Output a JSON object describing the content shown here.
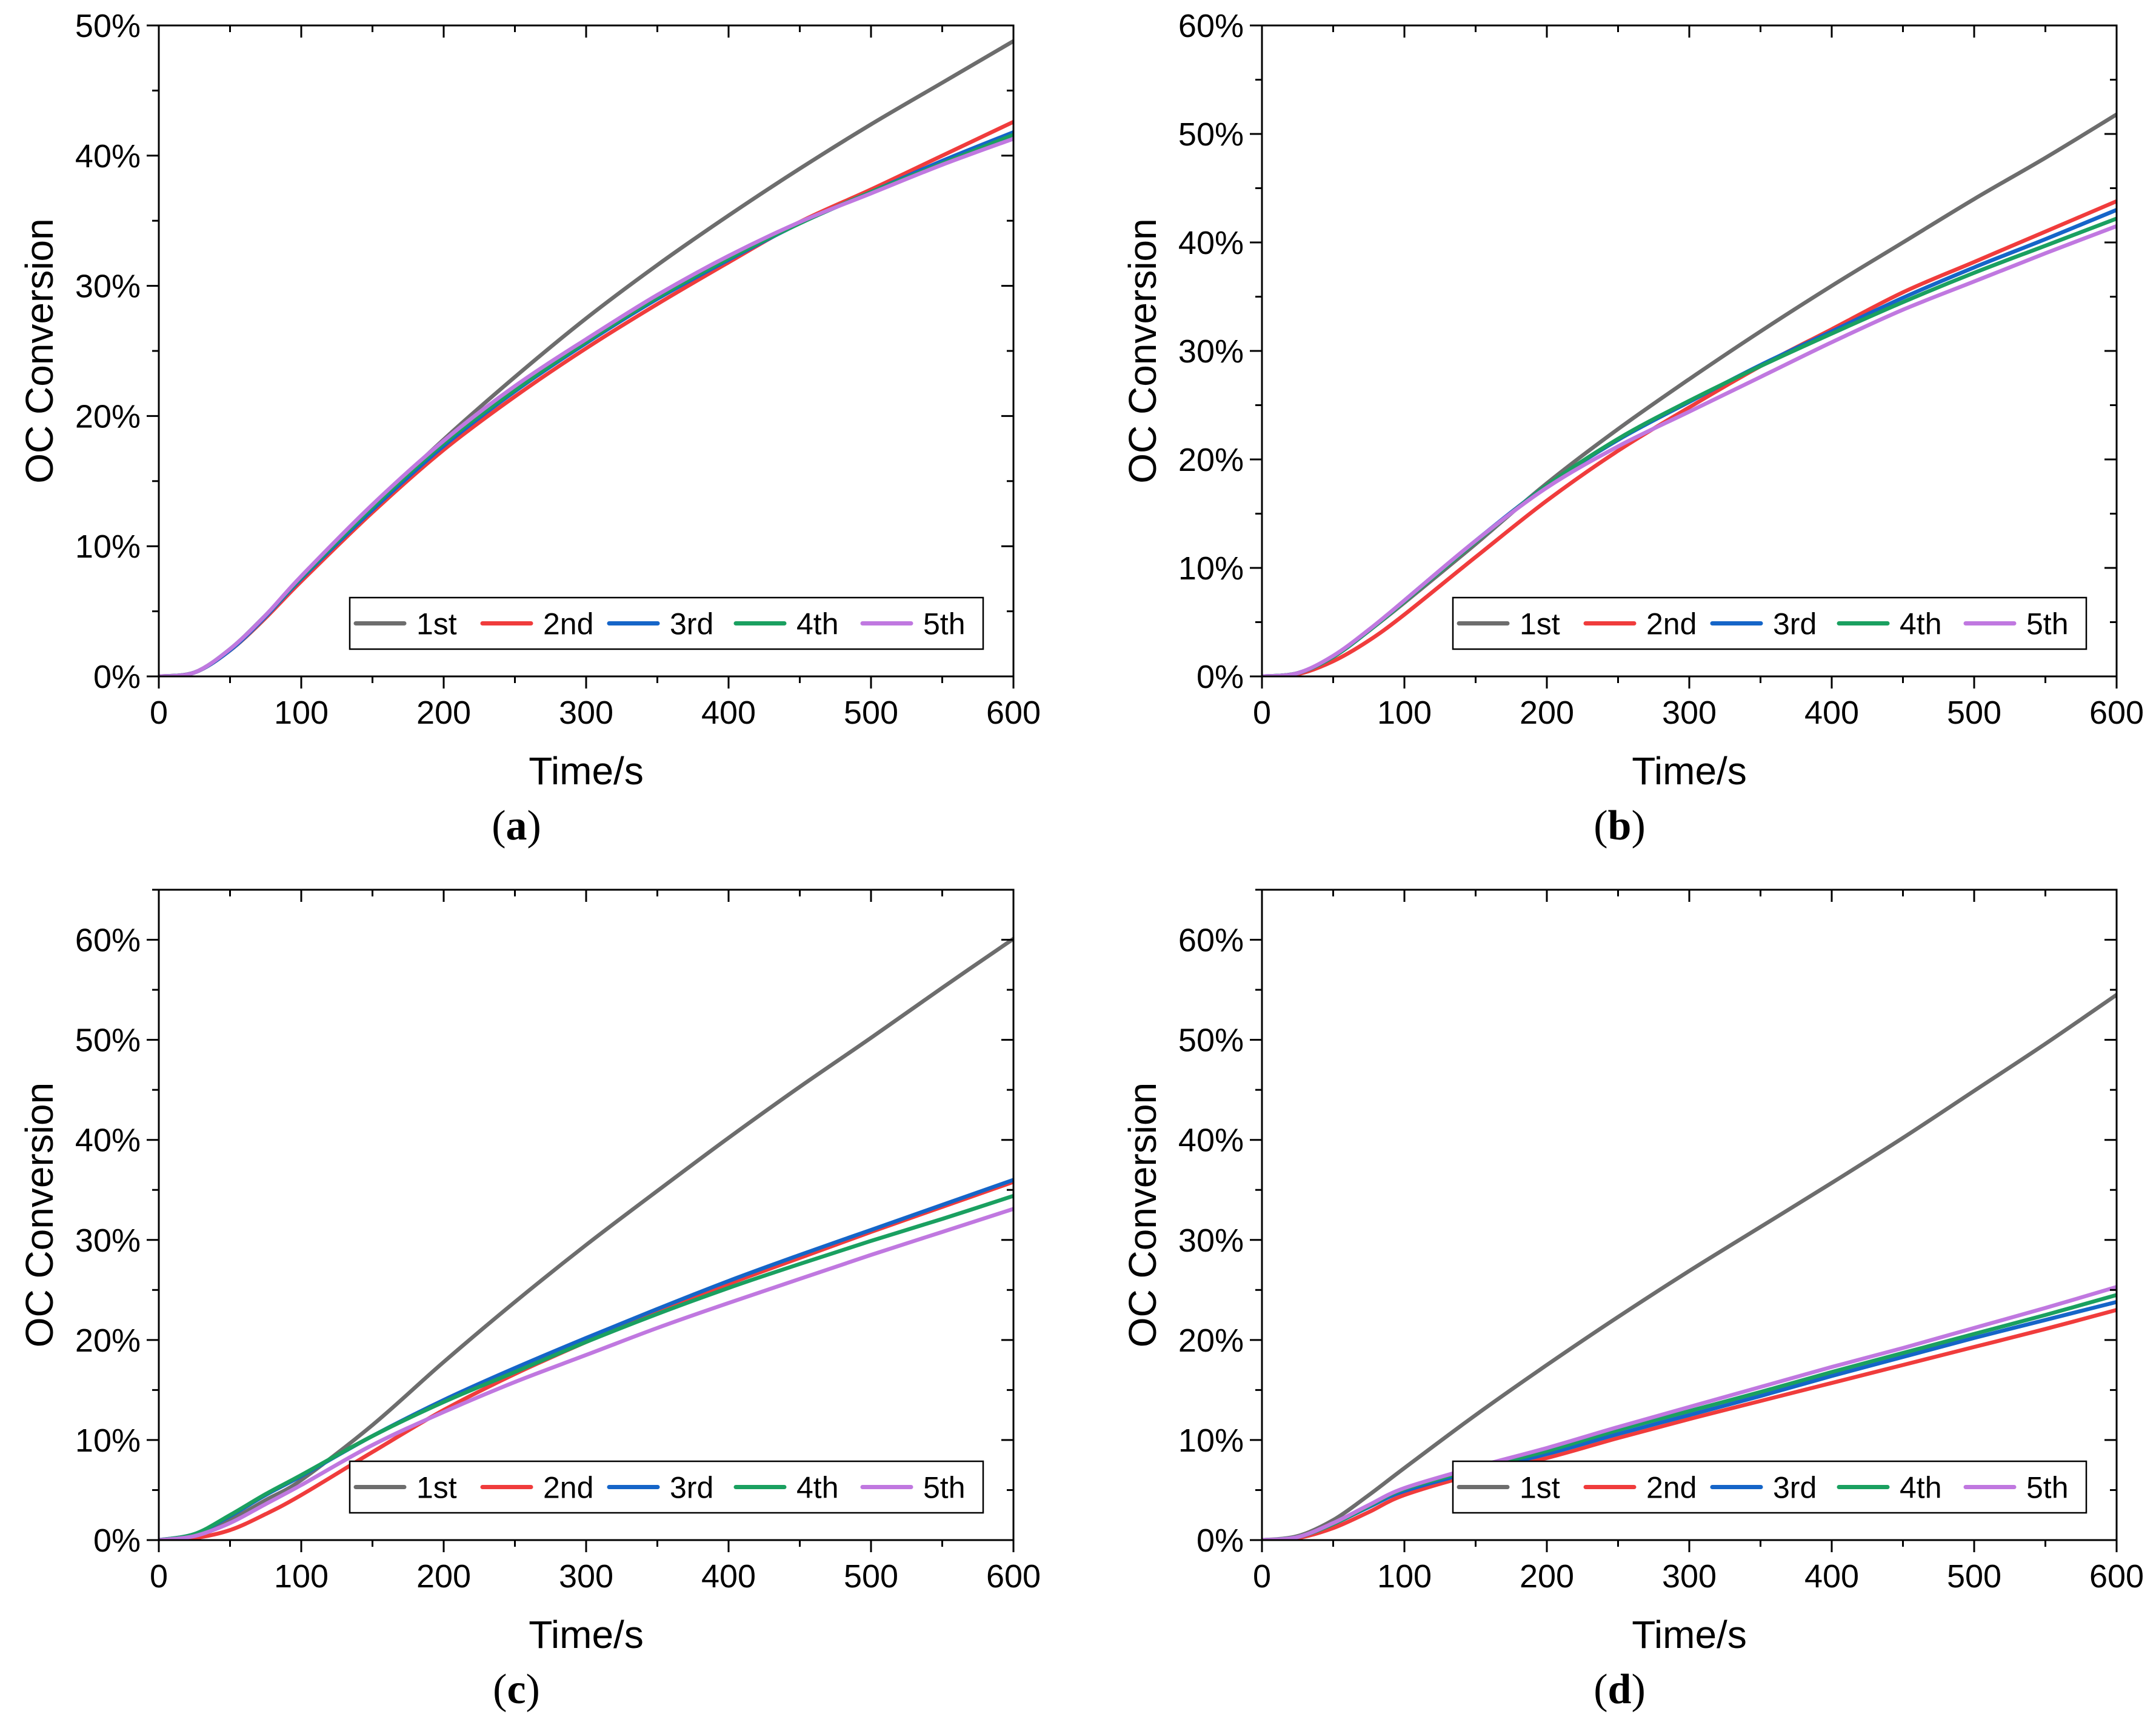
{
  "figure": {
    "series_colors": {
      "1st": "#6d6d6d",
      "2nd": "#f03c3c",
      "3rd": "#1565c8",
      "4th": "#1aa060",
      "5th": "#c078e0"
    }
  },
  "chart_data": [
    {
      "type": "line",
      "panel_label": "a",
      "xlabel": "Time/s",
      "ylabel": "OC Conversion",
      "xlim": [
        0,
        600
      ],
      "ylim": [
        0,
        50
      ],
      "xticks": [
        0,
        100,
        200,
        300,
        400,
        500,
        600
      ],
      "yticks": [
        0,
        10,
        20,
        30,
        40,
        50
      ],
      "ytick_suffix": "%",
      "legend_position": "bottom-right",
      "legend_entries": [
        "1st",
        "2nd",
        "3rd",
        "4th",
        "5th"
      ],
      "x": [
        0,
        25,
        50,
        75,
        100,
        150,
        200,
        250,
        300,
        350,
        400,
        450,
        500,
        550,
        600
      ],
      "series": [
        {
          "name": "1st",
          "values": [
            0,
            0.3,
            2.0,
            4.5,
            7.5,
            13.0,
            18.2,
            23.0,
            27.5,
            31.6,
            35.4,
            39.0,
            42.4,
            45.6,
            48.8
          ]
        },
        {
          "name": "2nd",
          "values": [
            0,
            0.3,
            2.0,
            4.5,
            7.3,
            12.6,
            17.4,
            21.5,
            25.2,
            28.6,
            31.8,
            34.9,
            37.4,
            40.0,
            42.6
          ]
        },
        {
          "name": "3rd",
          "values": [
            0,
            0.3,
            2.0,
            4.6,
            7.5,
            12.8,
            17.7,
            21.9,
            25.6,
            29.0,
            32.0,
            34.8,
            37.2,
            39.6,
            41.8
          ]
        },
        {
          "name": "4th",
          "values": [
            0,
            0.3,
            2.1,
            4.7,
            7.6,
            13.0,
            17.9,
            22.0,
            25.7,
            29.1,
            32.1,
            34.8,
            37.2,
            39.4,
            41.6
          ]
        },
        {
          "name": "5th",
          "values": [
            0,
            0.3,
            2.1,
            4.7,
            7.7,
            13.2,
            18.1,
            22.3,
            25.9,
            29.3,
            32.3,
            34.9,
            37.1,
            39.3,
            41.3
          ]
        }
      ]
    },
    {
      "type": "line",
      "panel_label": "b",
      "xlabel": "Time/s",
      "ylabel": "OC Conversion",
      "xlim": [
        0,
        600
      ],
      "ylim": [
        0,
        60
      ],
      "xticks": [
        0,
        100,
        200,
        300,
        400,
        500,
        600
      ],
      "yticks": [
        0,
        10,
        20,
        30,
        40,
        50,
        60
      ],
      "ytick_suffix": "%",
      "legend_position": "bottom-right",
      "legend_entries": [
        "1st",
        "2nd",
        "3rd",
        "4th",
        "5th"
      ],
      "x": [
        0,
        25,
        50,
        75,
        100,
        150,
        200,
        250,
        300,
        350,
        400,
        450,
        500,
        550,
        600
      ],
      "series": [
        {
          "name": "1st",
          "values": [
            0,
            0.3,
            1.8,
            4.2,
            6.8,
            12.2,
            17.8,
            22.8,
            27.4,
            31.8,
            36.0,
            40.0,
            44.0,
            47.8,
            51.8
          ]
        },
        {
          "name": "2nd",
          "values": [
            0,
            0.2,
            1.4,
            3.3,
            5.7,
            11.0,
            16.2,
            20.8,
            24.8,
            28.6,
            32.0,
            35.4,
            38.2,
            41.0,
            43.8
          ]
        },
        {
          "name": "3rd",
          "values": [
            0,
            0.3,
            1.8,
            4.2,
            7.0,
            12.5,
            17.6,
            21.8,
            25.3,
            28.7,
            31.8,
            34.9,
            37.7,
            40.3,
            43.0
          ]
        },
        {
          "name": "4th",
          "values": [
            0,
            0.3,
            1.8,
            4.2,
            6.9,
            12.4,
            17.6,
            21.9,
            25.4,
            28.6,
            31.6,
            34.5,
            37.2,
            39.7,
            42.2
          ]
        },
        {
          "name": "5th",
          "values": [
            0,
            0.3,
            1.9,
            4.3,
            7.0,
            12.5,
            17.4,
            21.2,
            24.4,
            27.6,
            30.8,
            33.8,
            36.4,
            39.0,
            41.5
          ]
        }
      ]
    },
    {
      "type": "line",
      "panel_label": "c",
      "xlabel": "Time/s",
      "ylabel": "OC Conversion",
      "xlim": [
        0,
        600
      ],
      "ylim": [
        0,
        65
      ],
      "xticks": [
        0,
        100,
        200,
        300,
        400,
        500,
        600
      ],
      "yticks": [
        0,
        10,
        20,
        30,
        40,
        50,
        60
      ],
      "ytick_suffix": "%",
      "legend_position": "bottom-right",
      "legend_entries": [
        "1st",
        "2nd",
        "3rd",
        "4th",
        "5th"
      ],
      "x": [
        0,
        25,
        50,
        75,
        100,
        150,
        200,
        250,
        300,
        350,
        400,
        450,
        500,
        550,
        600
      ],
      "series": [
        {
          "name": "1st",
          "values": [
            0,
            0.5,
            2.0,
            4.0,
            6.0,
            11.5,
            17.8,
            23.8,
            29.5,
            34.9,
            40.2,
            45.3,
            50.2,
            55.2,
            60.1
          ]
        },
        {
          "name": "2nd",
          "values": [
            0,
            0.2,
            1.0,
            2.6,
            4.5,
            8.8,
            13.0,
            16.6,
            19.8,
            22.8,
            25.6,
            28.2,
            30.8,
            33.3,
            35.8
          ]
        },
        {
          "name": "3rd",
          "values": [
            0,
            0.6,
            2.4,
            4.5,
            6.4,
            10.4,
            14.0,
            17.2,
            20.2,
            23.1,
            25.9,
            28.5,
            31.0,
            33.5,
            36.0
          ]
        },
        {
          "name": "4th",
          "values": [
            0,
            0.6,
            2.5,
            4.6,
            6.5,
            10.4,
            13.8,
            16.8,
            19.8,
            22.6,
            25.2,
            27.6,
            29.9,
            32.1,
            34.4
          ]
        },
        {
          "name": "5th",
          "values": [
            0,
            0.4,
            1.7,
            3.6,
            5.5,
            9.5,
            12.8,
            15.8,
            18.5,
            21.2,
            23.7,
            26.1,
            28.5,
            30.8,
            33.1
          ]
        }
      ]
    },
    {
      "type": "line",
      "panel_label": "d",
      "xlabel": "Time/s",
      "ylabel": "OC Conversion",
      "xlim": [
        0,
        600
      ],
      "ylim": [
        0,
        65
      ],
      "xticks": [
        0,
        100,
        200,
        300,
        400,
        500,
        600
      ],
      "yticks": [
        0,
        10,
        20,
        30,
        40,
        50,
        60
      ],
      "ytick_suffix": "%",
      "legend_position": "bottom-right",
      "legend_entries": [
        "1st",
        "2nd",
        "3rd",
        "4th",
        "5th"
      ],
      "x": [
        0,
        25,
        50,
        75,
        100,
        150,
        200,
        250,
        300,
        350,
        400,
        450,
        500,
        550,
        600
      ],
      "series": [
        {
          "name": "1st",
          "values": [
            0,
            0.4,
            2.0,
            4.5,
            7.2,
            12.5,
            17.5,
            22.3,
            26.9,
            31.3,
            35.7,
            40.2,
            44.9,
            49.6,
            54.5
          ]
        },
        {
          "name": "2nd",
          "values": [
            0,
            0.2,
            1.2,
            2.8,
            4.5,
            6.6,
            8.2,
            10.2,
            12.1,
            13.9,
            15.7,
            17.5,
            19.3,
            21.1,
            23.0
          ]
        },
        {
          "name": "3rd",
          "values": [
            0,
            0.3,
            1.6,
            3.3,
            4.9,
            6.9,
            8.6,
            10.6,
            12.5,
            14.4,
            16.4,
            18.3,
            20.2,
            22.0,
            23.8
          ]
        },
        {
          "name": "4th",
          "values": [
            0,
            0.3,
            1.6,
            3.4,
            5.1,
            7.1,
            8.9,
            11.0,
            12.9,
            14.8,
            16.8,
            18.7,
            20.6,
            22.5,
            24.5
          ]
        },
        {
          "name": "5th",
          "values": [
            0,
            0.3,
            1.7,
            3.5,
            5.2,
            7.3,
            9.2,
            11.3,
            13.3,
            15.3,
            17.3,
            19.2,
            21.2,
            23.2,
            25.3
          ]
        }
      ]
    }
  ]
}
